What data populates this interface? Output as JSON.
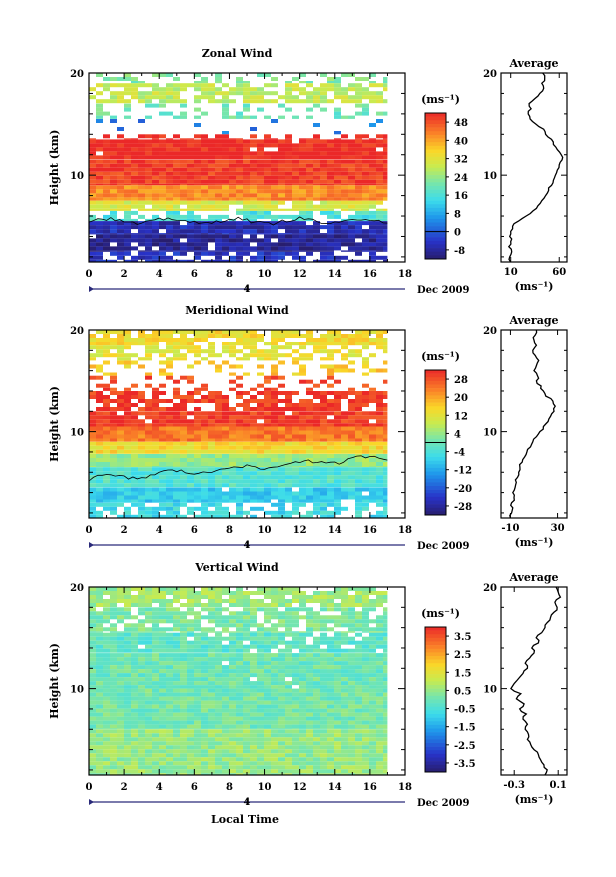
{
  "footer": {
    "xlabel": "Local Time"
  },
  "chart_data": [
    {
      "type": "heatmap",
      "title": "Zonal Wind",
      "ylabel": "Height (km)",
      "y_tick_labels": [
        "10",
        "20"
      ],
      "x_tick_labels": [
        "0",
        "2",
        "4",
        "6",
        "8",
        "10",
        "12",
        "14",
        "16",
        "18"
      ],
      "xlim": [
        0,
        18
      ],
      "ylim": [
        1.5,
        20
      ],
      "date_marker": "4",
      "date_label": "Dec 2009",
      "colorbar": {
        "unit": "(ms⁻¹)",
        "tick_labels": [
          "48",
          "40",
          "32",
          "24",
          "16",
          "8",
          "0",
          "-8"
        ],
        "min": -12,
        "max": 52,
        "contour_level": 0
      },
      "bands": [
        {
          "y_from": 19.0,
          "y_to": 20.0,
          "value": 22,
          "coverage": 0.35
        },
        {
          "y_from": 17.0,
          "y_to": 19.0,
          "value": 28,
          "coverage": 0.75
        },
        {
          "y_from": 15.5,
          "y_to": 17.0,
          "value": 20,
          "coverage": 0.35
        },
        {
          "y_from": 14.0,
          "y_to": 15.5,
          "value": 4,
          "coverage": 0.05
        },
        {
          "y_from": 13.5,
          "y_to": 14.0,
          "value": 52,
          "coverage": 0.55
        },
        {
          "y_from": 11.5,
          "y_to": 13.5,
          "value": 52,
          "coverage": 0.95
        },
        {
          "y_from": 9.0,
          "y_to": 11.5,
          "value": 50,
          "coverage": 1.0
        },
        {
          "y_from": 7.5,
          "y_to": 9.0,
          "value": 42,
          "coverage": 1.0
        },
        {
          "y_from": 6.5,
          "y_to": 7.5,
          "value": 30,
          "coverage": 0.9
        },
        {
          "y_from": 5.5,
          "y_to": 6.5,
          "value": 16,
          "coverage": 0.65
        },
        {
          "y_from": 4.2,
          "y_to": 5.5,
          "value": -6,
          "coverage": 0.95
        },
        {
          "y_from": 2.5,
          "y_to": 4.2,
          "value": -9,
          "coverage": 0.95
        },
        {
          "y_from": 1.5,
          "y_to": 2.5,
          "value": -5,
          "coverage": 0.6
        }
      ],
      "average_profile": {
        "title": "Average",
        "xlabel": "(ms⁻¹)",
        "x_tick_labels": [
          "10",
          "60"
        ],
        "y_tick_labels": [
          "10",
          "20"
        ],
        "xlim": [
          0,
          68
        ],
        "y": [
          1.5,
          2,
          2.5,
          3,
          3.5,
          4,
          4.5,
          5,
          5.5,
          6,
          6.5,
          7,
          7.5,
          8,
          8.5,
          9,
          9.5,
          10,
          10.5,
          11,
          11.5,
          12,
          12.5,
          13,
          13.5,
          14,
          14.5,
          15,
          15.5,
          16,
          16.5,
          17,
          17.5,
          18,
          18.5,
          19,
          19.5,
          20
        ],
        "x": [
          10,
          9,
          11,
          8,
          10,
          9,
          10,
          12,
          18,
          26,
          33,
          38,
          42,
          46,
          49,
          52,
          54,
          56,
          58,
          60,
          63,
          62,
          58,
          54,
          52,
          46,
          44,
          36,
          30,
          28,
          31,
          29,
          35,
          40,
          44,
          42,
          45,
          43
        ]
      }
    },
    {
      "type": "heatmap",
      "title": "Meridional Wind",
      "ylabel": "Height (km)",
      "y_tick_labels": [
        "10",
        "20"
      ],
      "x_tick_labels": [
        "0",
        "2",
        "4",
        "6",
        "8",
        "10",
        "12",
        "14",
        "16",
        "18"
      ],
      "xlim": [
        0,
        18
      ],
      "ylim": [
        1.5,
        20
      ],
      "date_marker": "4",
      "date_label": "Dec 2009",
      "colorbar": {
        "unit": "(ms⁻¹)",
        "tick_labels": [
          "28",
          "20",
          "12",
          "4",
          "-4",
          "-12",
          "-20",
          "-28"
        ],
        "min": -32,
        "max": 32,
        "contour_level": 0
      },
      "bands": [
        {
          "y_from": 18.5,
          "y_to": 20.0,
          "value": 14,
          "coverage": 0.8
        },
        {
          "y_from": 17.0,
          "y_to": 18.5,
          "value": 12,
          "coverage": 0.6
        },
        {
          "y_from": 15.5,
          "y_to": 17.0,
          "value": 16,
          "coverage": 0.3
        },
        {
          "y_from": 14.0,
          "y_to": 15.5,
          "value": 28,
          "coverage": 0.3
        },
        {
          "y_from": 12.0,
          "y_to": 14.0,
          "value": 30,
          "coverage": 0.75
        },
        {
          "y_from": 10.5,
          "y_to": 12.0,
          "value": 30,
          "coverage": 0.95
        },
        {
          "y_from": 9.0,
          "y_to": 10.5,
          "value": 24,
          "coverage": 1.0
        },
        {
          "y_from": 7.8,
          "y_to": 9.0,
          "value": 14,
          "coverage": 1.0
        },
        {
          "y_from": 6.5,
          "y_to": 7.8,
          "value": 4,
          "coverage": 1.0
        },
        {
          "y_from": 4.5,
          "y_to": 6.5,
          "value": -3,
          "coverage": 1.0
        },
        {
          "y_from": 3.0,
          "y_to": 4.5,
          "value": -8,
          "coverage": 0.95
        },
        {
          "y_from": 1.5,
          "y_to": 3.0,
          "value": -6,
          "coverage": 0.7
        }
      ],
      "average_profile": {
        "title": "Average",
        "xlabel": "(ms⁻¹)",
        "x_tick_labels": [
          "-10",
          "30"
        ],
        "y_tick_labels": [
          "10",
          "20"
        ],
        "xlim": [
          -18,
          38
        ],
        "y": [
          1.5,
          2,
          2.5,
          3,
          3.5,
          4,
          4.5,
          5,
          5.5,
          6,
          6.5,
          7,
          7.5,
          8,
          8.5,
          9,
          9.5,
          10,
          10.5,
          11,
          11.5,
          12,
          12.5,
          13,
          13.5,
          14,
          14.5,
          15,
          15.5,
          16,
          16.5,
          17,
          17.5,
          18,
          18.5,
          19,
          19.5,
          20
        ],
        "x": [
          -10,
          -9,
          -8,
          -9,
          -7,
          -8,
          -6,
          -5,
          -4,
          -3,
          -2,
          0,
          2,
          4,
          7,
          9,
          12,
          15,
          18,
          22,
          24,
          27,
          28,
          26,
          20,
          18,
          16,
          12,
          13,
          10,
          12,
          14,
          11,
          9,
          12,
          10,
          11,
          12
        ]
      }
    },
    {
      "type": "heatmap",
      "title": "Vertical Wind",
      "ylabel": "Height (km)",
      "y_tick_labels": [
        "10",
        "20"
      ],
      "x_tick_labels": [
        "0",
        "2",
        "4",
        "6",
        "8",
        "10",
        "12",
        "14",
        "16",
        "18"
      ],
      "xlim": [
        0,
        18
      ],
      "ylim": [
        1.5,
        20
      ],
      "date_marker": "4",
      "date_label": "Dec 2009",
      "colorbar": {
        "unit": "(ms⁻¹)",
        "tick_labels": [
          "3.5",
          "2.5",
          "1.5",
          "0.5",
          "-0.5",
          "-1.5",
          "-2.5",
          "-3.5"
        ],
        "min": -4,
        "max": 4
      },
      "bands": [
        {
          "y_from": 18.0,
          "y_to": 20.0,
          "value": 0.6,
          "coverage": 0.85
        },
        {
          "y_from": 15.5,
          "y_to": 18.0,
          "value": 0.2,
          "coverage": 0.8
        },
        {
          "y_from": 13.5,
          "y_to": 15.5,
          "value": -0.2,
          "coverage": 0.85
        },
        {
          "y_from": 10.0,
          "y_to": 13.5,
          "value": 0.0,
          "coverage": 0.98
        },
        {
          "y_from": 6.0,
          "y_to": 10.0,
          "value": 0.1,
          "coverage": 1.0
        },
        {
          "y_from": 1.5,
          "y_to": 6.0,
          "value": 0.5,
          "coverage": 1.0
        }
      ],
      "average_profile": {
        "title": "Average",
        "xlabel": "(ms⁻¹)",
        "x_tick_labels": [
          "-0.3",
          "0.1"
        ],
        "y_tick_labels": [
          "10",
          "20"
        ],
        "xlim": [
          -0.42,
          0.18
        ],
        "y": [
          1.5,
          2,
          2.5,
          3,
          3.5,
          4,
          4.5,
          5,
          5.5,
          6,
          6.5,
          7,
          7.5,
          8,
          8.5,
          9,
          9.5,
          10,
          10.5,
          11,
          11.5,
          12,
          12.5,
          13,
          13.5,
          14,
          14.5,
          15,
          15.5,
          16,
          16.5,
          17,
          17.5,
          18,
          18.5,
          19,
          19.5,
          20
        ],
        "x": [
          -0.02,
          0.0,
          -0.03,
          -0.06,
          -0.08,
          -0.12,
          -0.15,
          -0.18,
          -0.17,
          -0.2,
          -0.18,
          -0.22,
          -0.19,
          -0.25,
          -0.21,
          -0.28,
          -0.24,
          -0.33,
          -0.3,
          -0.26,
          -0.22,
          -0.18,
          -0.2,
          -0.16,
          -0.12,
          -0.14,
          -0.08,
          -0.1,
          -0.05,
          -0.02,
          0.0,
          0.03,
          0.06,
          0.09,
          0.07,
          0.12,
          0.1,
          0.08
        ]
      }
    }
  ]
}
